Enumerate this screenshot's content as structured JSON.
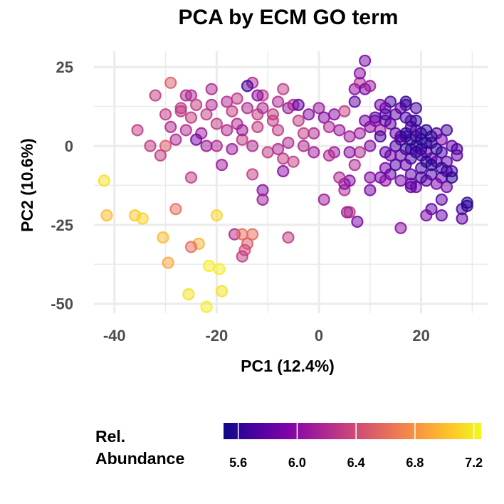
{
  "chart_data": {
    "type": "scatter",
    "title": "PCA by ECM GO term",
    "xlabel": "PC1 (12.4%)",
    "ylabel": "PC2 (10.6%)",
    "xlim": [
      -44,
      33
    ],
    "ylim": [
      -53,
      30
    ],
    "xticks": [
      -40,
      -20,
      0,
      20
    ],
    "xtick_labels": [
      "-40",
      "-20",
      "0",
      "20"
    ],
    "yticks": [
      -50,
      -25,
      0,
      25
    ],
    "ytick_labels": [
      "-50",
      "-25",
      "0",
      "25"
    ],
    "grid": true,
    "legend": {
      "title_line1": "Rel.",
      "title_line2": "Abundance",
      "position": "bottom",
      "range": [
        5.5,
        7.25
      ],
      "ticks": [
        5.6,
        6.0,
        6.4,
        6.8,
        7.2
      ],
      "tick_labels": [
        "5.6",
        "6.0",
        "6.4",
        "6.8",
        "7.2"
      ]
    },
    "colormap": "plasma",
    "marker_alpha": 0.5,
    "points": [
      [
        -42,
        -11,
        7.15
      ],
      [
        -41.5,
        -22,
        7.0
      ],
      [
        -36,
        -22,
        7.05
      ],
      [
        -34.5,
        -23,
        7.1
      ],
      [
        -30.5,
        -29,
        7.0
      ],
      [
        -29.5,
        -37,
        6.9
      ],
      [
        -25.5,
        -47,
        7.15
      ],
      [
        -22,
        -51,
        7.2
      ],
      [
        -21.5,
        -38,
        7.2
      ],
      [
        -19.5,
        -39,
        7.2
      ],
      [
        -19,
        -46,
        7.15
      ],
      [
        -20,
        -22,
        7.1
      ],
      [
        -23.5,
        -31,
        6.95
      ],
      [
        -25,
        -32,
        6.6
      ],
      [
        -28,
        -20,
        6.6
      ],
      [
        -25,
        -10,
        6.3
      ],
      [
        -16.5,
        -28,
        6.2
      ],
      [
        -15,
        -28,
        6.6
      ],
      [
        -13,
        -28,
        6.6
      ],
      [
        -14,
        -31,
        6.5
      ],
      [
        -14.5,
        -33,
        6.4
      ],
      [
        -15,
        -35,
        6.3
      ],
      [
        -6,
        -29,
        6.3
      ],
      [
        -13,
        -9,
        6.3
      ],
      [
        -32,
        16,
        6.3
      ],
      [
        -29,
        20,
        6.5
      ],
      [
        -30,
        10,
        6.3
      ],
      [
        -29,
        6,
        6.2
      ],
      [
        -30,
        0,
        6.5
      ],
      [
        -31,
        -3,
        6.3
      ],
      [
        -35.5,
        5,
        6.3
      ],
      [
        -33,
        0,
        6.3
      ],
      [
        -27,
        12,
        6.3
      ],
      [
        -25,
        16,
        6.2
      ],
      [
        -25,
        9,
        6.3
      ],
      [
        -24,
        13,
        6.3
      ],
      [
        -23,
        4,
        6.1
      ],
      [
        -21,
        18,
        6.2
      ],
      [
        -22,
        10,
        6.3
      ],
      [
        -21,
        13,
        6.2
      ],
      [
        -20,
        7,
        6.3
      ],
      [
        -20,
        0,
        6.2
      ],
      [
        -19,
        -6,
        6.1
      ],
      [
        -18,
        14,
        6.2
      ],
      [
        -17,
        11,
        6.3
      ],
      [
        -16,
        15,
        6.3
      ],
      [
        -16,
        7,
        6.2
      ],
      [
        -15,
        2,
        6.3
      ],
      [
        -14,
        12,
        6.2
      ],
      [
        -13,
        20,
        6.2
      ],
      [
        -12,
        10,
        6.3
      ],
      [
        -12,
        6,
        6.3
      ],
      [
        -11,
        16,
        6.3
      ],
      [
        -11,
        12,
        6.2
      ],
      [
        -10,
        -2,
        6.3
      ],
      [
        -9,
        8,
        6.3
      ],
      [
        -8,
        14,
        6.2
      ],
      [
        -8,
        5,
        6.3
      ],
      [
        -7,
        18,
        6.3
      ],
      [
        -7,
        -4,
        6.3
      ],
      [
        -6,
        12,
        6.1
      ],
      [
        -6,
        1,
        6.2
      ],
      [
        -5,
        13,
        6.2
      ],
      [
        -4,
        8,
        6.3
      ],
      [
        -3,
        4,
        6.3
      ],
      [
        -14,
        19,
        5.7
      ],
      [
        -12,
        16,
        6.0
      ],
      [
        -11,
        -14,
        6.0
      ],
      [
        -11,
        -17,
        6.1
      ],
      [
        -7,
        -8,
        6.0
      ],
      [
        -24,
        2,
        5.9
      ],
      [
        -28,
        2,
        6.2
      ],
      [
        -26,
        5,
        6.2
      ],
      [
        -22,
        0,
        6.1
      ],
      [
        -18,
        5,
        6.2
      ],
      [
        -17,
        -1,
        6.1
      ],
      [
        -15,
        5,
        6.1
      ],
      [
        -13,
        0,
        6.2
      ],
      [
        -9,
        10,
        6.3
      ],
      [
        -4,
        13,
        5.8
      ],
      [
        -2,
        10,
        6.0
      ],
      [
        -1,
        4,
        6.2
      ],
      [
        0,
        12,
        6.1
      ],
      [
        1,
        9,
        6.0
      ],
      [
        2,
        6,
        6.2
      ],
      [
        3,
        10,
        6.0
      ],
      [
        4,
        5,
        6.1
      ],
      [
        5,
        11,
        6.3
      ],
      [
        6,
        3,
        6.1
      ],
      [
        7,
        18,
        6.0
      ],
      [
        7,
        14,
        5.8
      ],
      [
        8,
        20,
        6.2
      ],
      [
        9,
        18,
        5.9
      ],
      [
        8,
        23,
        6.0
      ],
      [
        9,
        27,
        5.9
      ],
      [
        10,
        19,
        6.1
      ],
      [
        8,
        -2,
        6.2
      ],
      [
        6,
        -2,
        6.0
      ],
      [
        7,
        -6,
        6.2
      ],
      [
        6,
        -11,
        6.0
      ],
      [
        5,
        -14,
        6.2
      ],
      [
        5,
        -12,
        6.0
      ],
      [
        4,
        -10,
        6.2
      ],
      [
        3,
        -2,
        6.1
      ],
      [
        2,
        -3,
        6.2
      ],
      [
        1,
        -17,
        6.1
      ],
      [
        6,
        -21,
        6.3
      ],
      [
        5.5,
        -21,
        6.1
      ],
      [
        7.5,
        -24,
        5.9
      ],
      [
        8,
        4,
        6.1
      ],
      [
        10,
        0,
        6.0
      ],
      [
        11,
        8,
        5.9
      ],
      [
        12,
        5,
        6.1
      ],
      [
        13,
        12,
        5.9
      ],
      [
        14,
        14,
        5.7
      ],
      [
        15,
        10,
        5.8
      ],
      [
        16,
        12,
        5.8
      ],
      [
        17,
        14,
        5.6
      ],
      [
        18,
        8,
        5.8
      ],
      [
        19,
        12,
        5.7
      ],
      [
        17,
        3,
        5.7
      ],
      [
        18,
        -1,
        5.7
      ],
      [
        19,
        0,
        5.7
      ],
      [
        20,
        2,
        5.6
      ],
      [
        21,
        -2,
        5.8
      ],
      [
        19,
        3,
        5.6
      ],
      [
        18,
        6,
        5.7
      ],
      [
        16,
        2,
        5.8
      ],
      [
        15,
        0,
        5.7
      ],
      [
        14,
        -3,
        5.9
      ],
      [
        13,
        -7,
        5.9
      ],
      [
        12,
        -10,
        5.9
      ],
      [
        14,
        -9,
        5.8
      ],
      [
        13,
        8,
        5.8
      ],
      [
        12,
        3,
        5.7
      ],
      [
        11,
        9,
        5.8
      ],
      [
        15,
        -6,
        5.7
      ],
      [
        17,
        -6,
        5.8
      ],
      [
        18,
        -9,
        5.8
      ],
      [
        19,
        -13,
        5.9
      ],
      [
        20,
        -7,
        5.7
      ],
      [
        21,
        -11,
        5.8
      ],
      [
        22,
        -9,
        5.7
      ],
      [
        22,
        -4,
        5.8
      ],
      [
        23,
        -5,
        5.8
      ],
      [
        24,
        -2,
        5.7
      ],
      [
        25,
        -5,
        5.8
      ],
      [
        26,
        -8,
        5.7
      ],
      [
        25,
        -13,
        5.9
      ],
      [
        24,
        -10,
        5.8
      ],
      [
        23,
        -12,
        5.9
      ],
      [
        22,
        1,
        5.7
      ],
      [
        23,
        4,
        5.8
      ],
      [
        24,
        2,
        5.9
      ],
      [
        25,
        5,
        5.7
      ],
      [
        26,
        0,
        5.8
      ],
      [
        27,
        -1,
        5.7
      ],
      [
        28,
        -20,
        5.7
      ],
      [
        29,
        -18,
        5.6
      ],
      [
        29,
        -19,
        5.6
      ],
      [
        28,
        -23,
        5.8
      ],
      [
        24,
        -22,
        5.8
      ],
      [
        22,
        -20,
        5.8
      ],
      [
        21,
        -22,
        5.9
      ],
      [
        16,
        -26,
        6.0
      ],
      [
        10,
        -14,
        5.9
      ],
      [
        13,
        -11,
        6.0
      ],
      [
        10,
        -10,
        6.0
      ],
      [
        18,
        -12,
        5.8
      ],
      [
        16,
        -11,
        5.9
      ],
      [
        17,
        13,
        5.7
      ],
      [
        19,
        8,
        5.6
      ],
      [
        20,
        4,
        5.6
      ],
      [
        21,
        1,
        5.6
      ],
      [
        18,
        2,
        5.6
      ],
      [
        17,
        -1,
        5.6
      ],
      [
        19,
        -2,
        5.6
      ],
      [
        20,
        -1,
        5.6
      ],
      [
        22,
        3,
        5.6
      ],
      [
        23,
        -1,
        5.6
      ],
      [
        24,
        -7,
        5.6
      ],
      [
        25,
        -8,
        5.7
      ],
      [
        26,
        -10,
        5.6
      ],
      [
        27,
        -3,
        5.8
      ],
      [
        21,
        5,
        5.6
      ],
      [
        20,
        -3,
        5.7
      ],
      [
        19,
        5,
        5.7
      ],
      [
        18,
        -4,
        5.7
      ],
      [
        16,
        3,
        5.7
      ],
      [
        15,
        4,
        5.8
      ],
      [
        14,
        7,
        5.8
      ],
      [
        13,
        10,
        5.7
      ],
      [
        12,
        13,
        5.9
      ],
      [
        9,
        8,
        5.9
      ],
      [
        10,
        6,
        6.0
      ],
      [
        13,
        -2,
        5.8
      ],
      [
        16,
        -3,
        5.8
      ],
      [
        17,
        9,
        5.7
      ],
      [
        21,
        -5,
        5.6
      ],
      [
        22,
        -6,
        5.6
      ],
      [
        20,
        -10,
        5.7
      ],
      [
        18,
        -13,
        5.8
      ],
      [
        17,
        4,
        5.6
      ],
      [
        24,
        -17,
        5.8
      ],
      [
        -3,
        0,
        6.2
      ],
      [
        -5,
        -5,
        6.3
      ],
      [
        -1,
        -2,
        6.1
      ],
      [
        -8,
        -1,
        6.2
      ],
      [
        -26,
        16,
        6.2
      ],
      [
        -27,
        11,
        6.3
      ]
    ]
  }
}
